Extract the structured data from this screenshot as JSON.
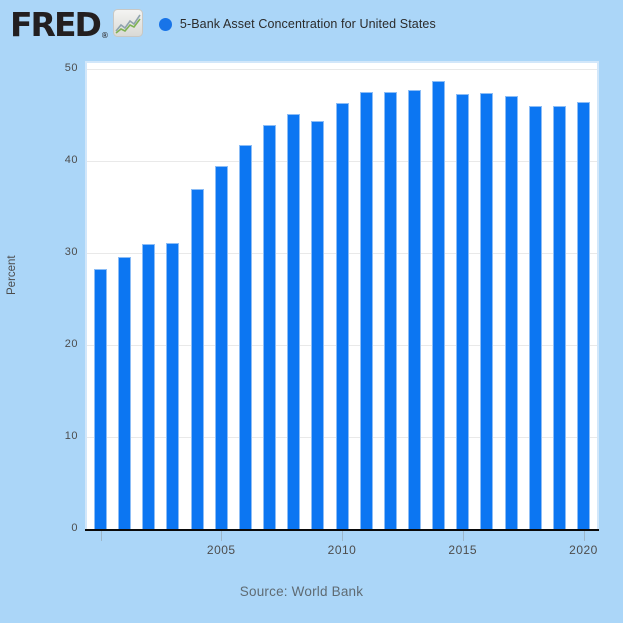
{
  "header": {
    "logo_text": "FRED",
    "registered_mark": "®",
    "legend": {
      "dot_color": "#1874e8",
      "series_label": "5-Bank Asset Concentration for United States"
    }
  },
  "chart_data": {
    "type": "bar",
    "title": "5-Bank Asset Concentration for United States",
    "ylabel": "Percent",
    "xlabel": "",
    "x": [
      2000,
      2001,
      2002,
      2003,
      2004,
      2005,
      2006,
      2007,
      2008,
      2009,
      2010,
      2011,
      2012,
      2013,
      2014,
      2015,
      2016,
      2017,
      2018,
      2019,
      2020
    ],
    "values": [
      28.2,
      29.5,
      31.0,
      31.1,
      36.9,
      39.4,
      41.7,
      43.9,
      45.1,
      44.3,
      46.3,
      47.5,
      47.4,
      47.7,
      48.6,
      47.2,
      47.3,
      47.0,
      45.9,
      45.9,
      46.4
    ],
    "ylim": [
      0,
      50.6
    ],
    "y_ticks": [
      0,
      10,
      20,
      30,
      40,
      50
    ],
    "x_ticks": [
      2000,
      2005,
      2010,
      2015,
      2020
    ],
    "x_tick_labels": [
      "",
      "2005",
      "2010",
      "2015",
      "2020"
    ],
    "grid": true,
    "bar_color": "#0c76f2",
    "legend_position": "top"
  },
  "footer": {
    "source": "Source: World Bank"
  },
  "colors": {
    "page_background": "#abd6f8",
    "plot_background": "#ffffff",
    "plot_border": "#d2e7fa",
    "gridline": "#e9e9e9",
    "axis_line": "#0a0a0a",
    "tick_text": "#4d4d4d",
    "source_text": "#5f6b73",
    "title_text": "#2b2b2b"
  }
}
